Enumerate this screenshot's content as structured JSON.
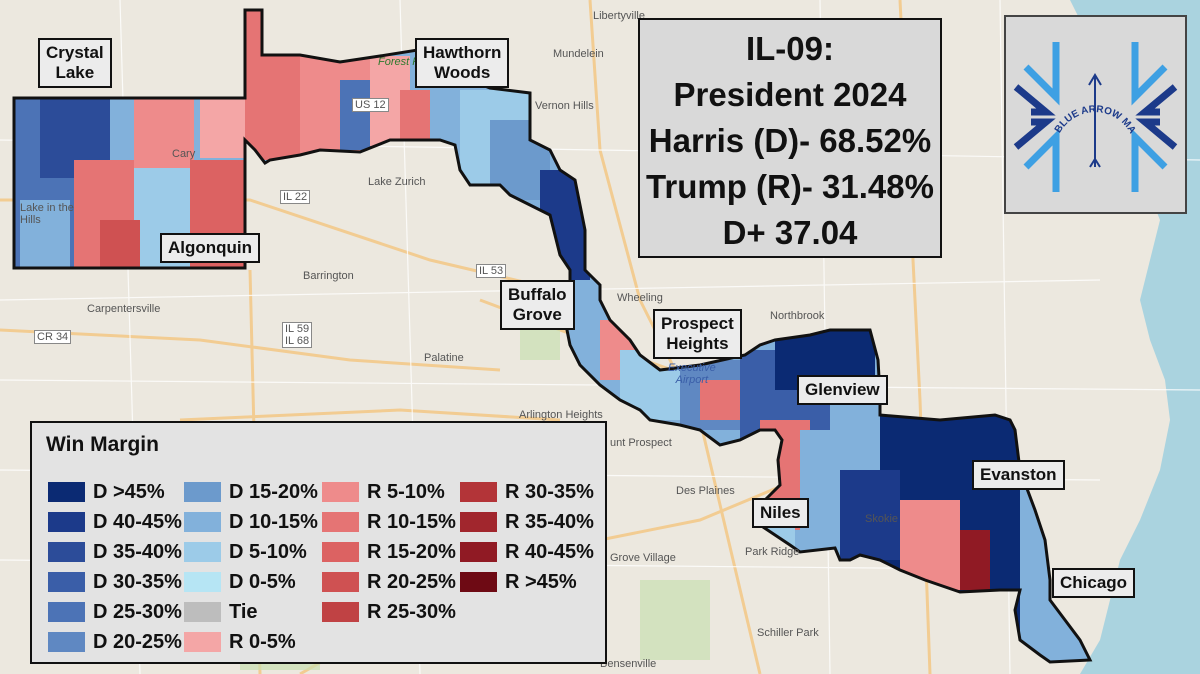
{
  "title": {
    "line1": "IL-09:",
    "line2": "President 2024",
    "line3": "Harris (D)- 68.52%",
    "line4": "Trump (R)- 31.48%",
    "line5": "D+ 37.04"
  },
  "logo": {
    "text": "BLUE ARROW MAPS"
  },
  "labels": {
    "crystal_lake": "Crystal\nLake",
    "hawthorn_woods": "Hawthorn\nWoods",
    "algonquin": "Algonquin",
    "buffalo_grove": "Buffalo\nGrove",
    "prospect_heights": "Prospect\nHeights",
    "glenview": "Glenview",
    "evanston": "Evanston",
    "niles": "Niles",
    "chicago": "Chicago"
  },
  "basemap_places": {
    "libertyville": "Libertyville",
    "mundelein": "Mundelein",
    "vernon_hills": "Vernon Hills",
    "lake_zurich": "Lake Zurich",
    "barrington": "Barrington",
    "carpentersville": "Carpentersville",
    "palatine": "Palatine",
    "wheeling": "Wheeling",
    "northbrook": "Northbrook",
    "arlington_heights": "Arlington Heights",
    "mount_prospect": "unt Prospect",
    "des_plaines": "Des Plaines",
    "park_ridge": "Park Ridge",
    "skokie": "Skokie",
    "grove_village": "Grove Village",
    "schiller_park": "Schiller Park",
    "bensenville": "Bensenville",
    "cary": "Cary",
    "lake_in_the_hills": "Lake in the\nHills",
    "forest_preserve": "Forest Preserve",
    "executive_airport": "Executive\nAirport",
    "il22": "IL 22",
    "il53": "IL 53",
    "us12": "US 12",
    "il59": "IL 59\nIL 68",
    "cr34": "CR 34"
  },
  "legend": {
    "title": "Win Margin",
    "items": [
      {
        "label": "D >45%",
        "color": "#0b2a73"
      },
      {
        "label": "D 40-45%",
        "color": "#1c3a8a"
      },
      {
        "label": "D 35-40%",
        "color": "#2c4c99"
      },
      {
        "label": "D 30-35%",
        "color": "#3a5ea8"
      },
      {
        "label": "D 25-30%",
        "color": "#4c73b6"
      },
      {
        "label": "D 20-25%",
        "color": "#5f88c2"
      },
      {
        "label": "D 15-20%",
        "color": "#6c9acc"
      },
      {
        "label": "D 10-15%",
        "color": "#82b1db"
      },
      {
        "label": "D 5-10%",
        "color": "#9ccbe8"
      },
      {
        "label": "D 0-5%",
        "color": "#b6e5f4"
      },
      {
        "label": "Tie",
        "color": "#bdbdbd"
      },
      {
        "label": "R 0-5%",
        "color": "#f4a6a6"
      },
      {
        "label": "R 5-10%",
        "color": "#ee8b8b"
      },
      {
        "label": "R 10-15%",
        "color": "#e57474"
      },
      {
        "label": "R 15-20%",
        "color": "#dc6262"
      },
      {
        "label": "R 20-25%",
        "color": "#cf5152"
      },
      {
        "label": "R 25-30%",
        "color": "#c04244"
      },
      {
        "label": "R 30-35%",
        "color": "#b33438"
      },
      {
        "label": "R 35-40%",
        "color": "#a1262d"
      },
      {
        "label": "R 40-45%",
        "color": "#901a24"
      },
      {
        "label": "R >45%",
        "color": "#6e0a14"
      }
    ]
  },
  "colors": {
    "water": "#aad3df",
    "land": "#ece8df",
    "district_border": "#111111"
  }
}
